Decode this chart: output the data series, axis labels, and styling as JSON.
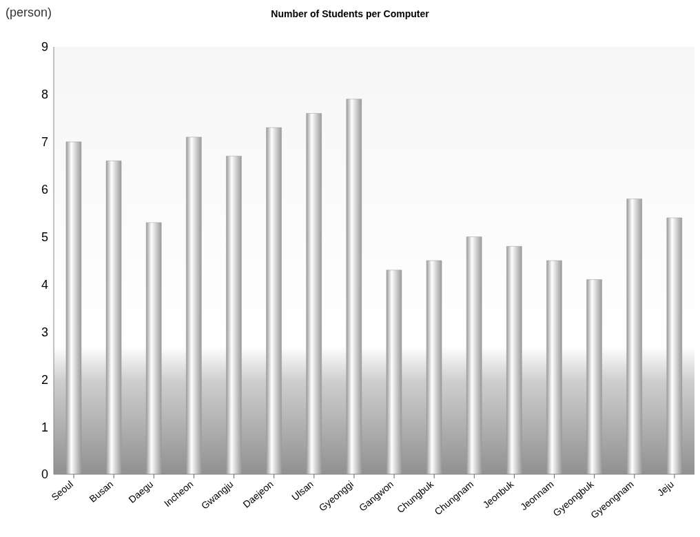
{
  "chart_data": {
    "type": "bar",
    "title": "Number of Students per Computer",
    "ylabel": "(person)",
    "categories": [
      "Seoul",
      "Busan",
      "Daegu",
      "Incheon",
      "Gwangju",
      "Daejeon",
      "Ulsan",
      "Gyeonggi",
      "Gangwon",
      "Chungbuk",
      "Chungnam",
      "Jeonbuk",
      "Jeonnam",
      "Gyeongbuk",
      "Gyeongnam",
      "Jeju"
    ],
    "values": [
      7.0,
      6.6,
      5.3,
      7.1,
      6.7,
      7.3,
      7.6,
      7.9,
      4.3,
      4.5,
      5.0,
      4.8,
      4.5,
      4.1,
      5.8,
      5.4
    ],
    "color": "#9a9a9a",
    "ylim": [
      0,
      9
    ],
    "yticks": [
      0,
      1,
      2,
      3,
      4,
      5,
      6,
      7,
      8,
      9
    ],
    "grid": false
  }
}
